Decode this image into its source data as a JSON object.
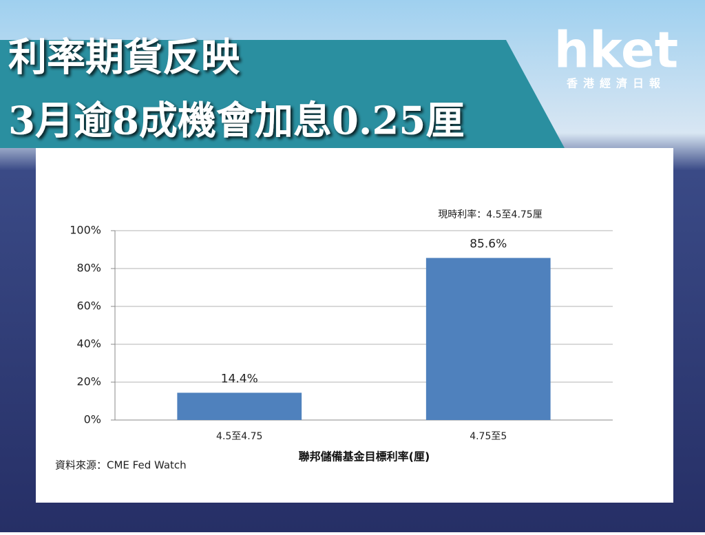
{
  "header": {
    "title_lines": [
      "利率期貨反映",
      "3月逾8成機會加息0.25厘"
    ],
    "logo": "hket",
    "logo_subtitle": "香港經濟日報"
  },
  "chart_data": {
    "type": "bar",
    "annotation": "現時利率：4.5至4.75厘",
    "categories": [
      "4.5至4.75",
      "4.75至5"
    ],
    "values": [
      14.4,
      85.6
    ],
    "value_labels": [
      "14.4%",
      "85.6%"
    ],
    "color": "#4f81bd",
    "x_label": "聯邦儲備基金目標利率(厘)",
    "source": "資料來源：CME Fed Watch",
    "ylim": [
      0,
      100
    ],
    "yticks": [
      {
        "value": 0,
        "label": "0%"
      },
      {
        "value": 20,
        "label": "20%"
      },
      {
        "value": 40,
        "label": "40%"
      },
      {
        "value": 60,
        "label": "60%"
      },
      {
        "value": 80,
        "label": "80%"
      },
      {
        "value": 100,
        "label": "100%"
      }
    ],
    "grid": true
  }
}
